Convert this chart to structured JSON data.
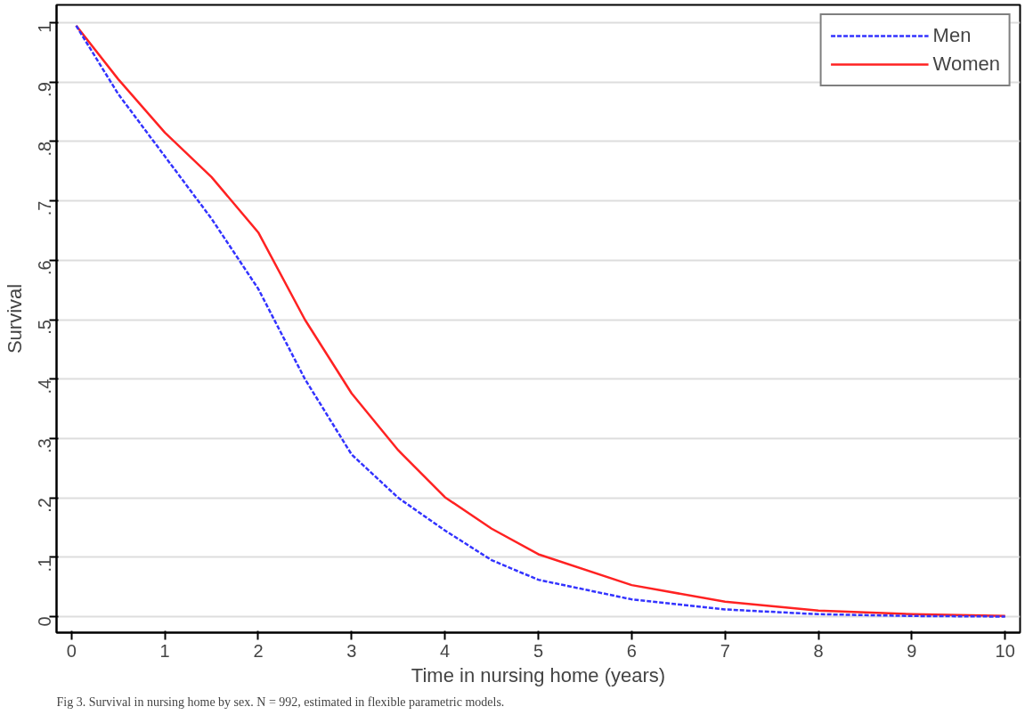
{
  "chart_data": {
    "type": "line",
    "xlabel": "Time in nursing home (years)",
    "ylabel": "Survival",
    "annotations": [
      "Fig 3. Survival in nursing home by sex. N = 992, estimated in flexible parametric models."
    ],
    "xlim": [
      -0.16,
      10.16
    ],
    "ylim": [
      -0.027,
      1.03
    ],
    "xticks": [
      0,
      1,
      2,
      3,
      4,
      5,
      6,
      7,
      8,
      9,
      10
    ],
    "yticks": [
      0,
      {
        "value": 0.1,
        "label": ".1"
      },
      {
        "value": 0.2,
        "label": ".2"
      },
      {
        "value": 0.3,
        "label": ".3"
      },
      {
        "value": 0.4,
        "label": ".4"
      },
      {
        "value": 0.5,
        "label": ".5"
      },
      {
        "value": 0.6,
        "label": ".6"
      },
      {
        "value": 0.7,
        "label": ".7"
      },
      {
        "value": 0.8,
        "label": ".8"
      },
      {
        "value": 0.9,
        "label": ".9"
      },
      1
    ],
    "grid": "y",
    "legend": "top right",
    "x": [
      0.05,
      0.5,
      1,
      1.5,
      2,
      2.5,
      3,
      3.5,
      4,
      4.5,
      5,
      6,
      7,
      8,
      9,
      10
    ],
    "series": [
      {
        "name": "Men",
        "color": "#3333ff",
        "line_style": "dashed",
        "values": [
          0.995,
          0.88,
          0.775,
          0.67,
          0.552,
          0.4,
          0.273,
          0.2,
          0.145,
          0.095,
          0.062,
          0.029,
          0.012,
          0.004,
          0.001,
          0
        ]
      },
      {
        "name": "Women",
        "color": "#ff2222",
        "line_style": "solid",
        "values": [
          0.995,
          0.905,
          0.815,
          0.74,
          0.647,
          0.5,
          0.376,
          0.28,
          0.201,
          0.148,
          0.105,
          0.053,
          0.025,
          0.01,
          0.004,
          0.001
        ]
      }
    ]
  }
}
